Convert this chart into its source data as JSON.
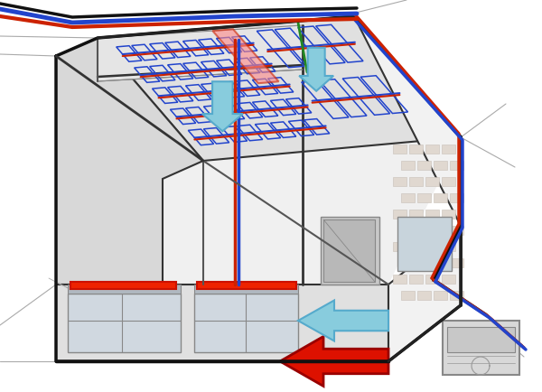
{
  "bg": "#ffffff",
  "wall_dark": "#333333",
  "wall_mid": "#888888",
  "wall_light": "#cccccc",
  "wall_fill": "#e8e8e8",
  "wall_fill2": "#d8d8d8",
  "wall_fill3": "#f2f2f2",
  "floor_fill": "#efefef",
  "ceiling_fill": "#e0e0e0",
  "pipe_red": "#cc2200",
  "pipe_blue": "#2244cc",
  "pipe_green": "#228822",
  "coil_color": "#2244cc",
  "coil_fill": "none",
  "radiator_fill": "#ee2200",
  "radiator_edge": "#cc1100",
  "arrow_red": "#dd1100",
  "arrow_blue_light": "#88ccdd",
  "arrow_blue_mid": "#55aacc",
  "window_fill": "#c8d4dc",
  "door_fill": "#b0b0b0",
  "brick_fill": "#e0d8d0",
  "ac_fill": "#d8d8d8",
  "ext_line": "#aaaaaa",
  "grid_line": "#999999"
}
